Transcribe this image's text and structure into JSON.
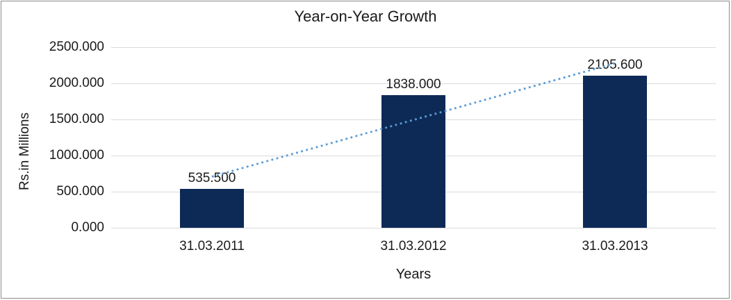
{
  "chart_data": {
    "type": "bar",
    "title": "Year-on-Year Growth",
    "xlabel": "Years",
    "ylabel": "Rs.in Millions",
    "categories": [
      "31.03.2011",
      "31.03.2012",
      "31.03.2013"
    ],
    "values": [
      535.5,
      1838.0,
      2105.6
    ],
    "value_labels": [
      "535.500",
      "1838.000",
      "2105.600"
    ],
    "ylim": [
      0,
      2500
    ],
    "ytick_values": [
      0,
      500,
      1000,
      1500,
      2000,
      2500
    ],
    "ytick_labels": [
      "0.000",
      "500.000",
      "1000.000",
      "1500.000",
      "2000.000",
      "2500.000"
    ],
    "grid": true,
    "legend": false,
    "trendline": {
      "type": "linear",
      "style": "dotted"
    },
    "colors": {
      "bar": "#0d2a56",
      "trendline": "#5b9bd5",
      "gridline": "#d9d9d9",
      "text": "#1a1a1a",
      "frame_border": "#8a8a8a",
      "background": "#ffffff"
    }
  }
}
